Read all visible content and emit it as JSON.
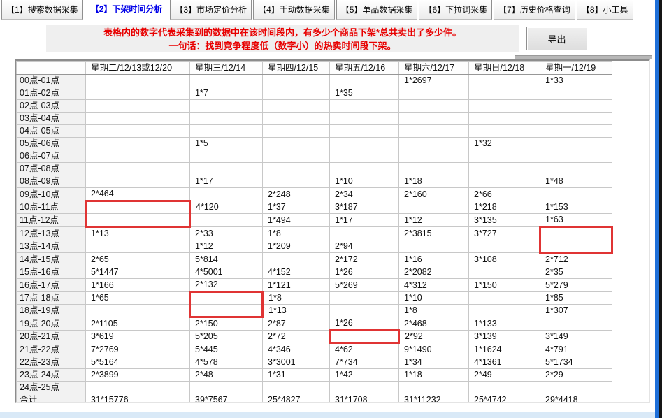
{
  "tabs": {
    "active_index": 1,
    "items": [
      "【1】搜索数据采集",
      "【2】下架时间分析",
      "【3】市场定价分析",
      "【4】手动数据采集",
      "【5】单品数据采集",
      "【6】下拉词采集",
      "【7】历史价格查询",
      "【8】小工具"
    ]
  },
  "banner": {
    "line1": "表格内的数字代表采集到的数据中在该时间段内，有多少个商品下架*总共卖出了多少件。",
    "line2": "一句话：找到竞争程度低（数字小）的热卖时间段下架。"
  },
  "toolbar": {
    "export_label": "导出"
  },
  "table": {
    "columns": [
      "",
      "星期二/12/13或12/20",
      "星期三/12/14",
      "星期四/12/15",
      "星期五/12/16",
      "星期六/12/17",
      "星期日/12/18",
      "星期一/12/19"
    ],
    "rows": [
      {
        "label": "00点-01点",
        "cells": [
          "",
          "",
          "",
          "",
          "1*2697",
          "",
          "1*33"
        ]
      },
      {
        "label": "01点-02点",
        "cells": [
          "",
          "1*7",
          "",
          "1*35",
          "",
          "",
          ""
        ]
      },
      {
        "label": "02点-03点",
        "cells": [
          "",
          "",
          "",
          "",
          "",
          "",
          ""
        ]
      },
      {
        "label": "03点-04点",
        "cells": [
          "",
          "",
          "",
          "",
          "",
          "",
          ""
        ]
      },
      {
        "label": "04点-05点",
        "cells": [
          "",
          "",
          "",
          "",
          "",
          "",
          ""
        ]
      },
      {
        "label": "05点-06点",
        "cells": [
          "",
          "1*5",
          "",
          "",
          "",
          "1*32",
          ""
        ]
      },
      {
        "label": "06点-07点",
        "cells": [
          "",
          "",
          "",
          "",
          "",
          "",
          ""
        ]
      },
      {
        "label": "07点-08点",
        "cells": [
          "",
          "",
          "",
          "",
          "",
          "",
          ""
        ]
      },
      {
        "label": "08点-09点",
        "cells": [
          "",
          "1*17",
          "",
          "1*10",
          "1*18",
          "",
          "1*48"
        ]
      },
      {
        "label": "09点-10点",
        "cells": [
          "2*464",
          "",
          "2*248",
          "2*34",
          "2*160",
          "2*66",
          ""
        ]
      },
      {
        "label": "10点-11点",
        "cells": [
          "",
          "4*120",
          "1*37",
          "3*187",
          "",
          "1*218",
          "1*153"
        ]
      },
      {
        "label": "11点-12点",
        "cells": [
          "",
          "",
          "1*494",
          "1*17",
          "1*12",
          "3*135",
          "1*63"
        ]
      },
      {
        "label": "12点-13点",
        "cells": [
          "1*13",
          "2*33",
          "1*8",
          "",
          "2*3815",
          "3*727",
          ""
        ]
      },
      {
        "label": "13点-14点",
        "cells": [
          "",
          "1*12",
          "1*209",
          "2*94",
          "",
          "",
          ""
        ]
      },
      {
        "label": "14点-15点",
        "cells": [
          "2*65",
          "5*814",
          "",
          "2*172",
          "1*16",
          "3*108",
          "2*712"
        ]
      },
      {
        "label": "15点-16点",
        "cells": [
          "5*1447",
          "4*5001",
          "4*152",
          "1*26",
          "2*2082",
          "",
          "2*35"
        ]
      },
      {
        "label": "16点-17点",
        "cells": [
          "1*166",
          "2*132",
          "1*121",
          "5*269",
          "4*312",
          "1*150",
          "5*279"
        ]
      },
      {
        "label": "17点-18点",
        "cells": [
          "1*65",
          "",
          "1*8",
          "",
          "1*10",
          "",
          "1*85"
        ]
      },
      {
        "label": "18点-19点",
        "cells": [
          "",
          "",
          "1*13",
          "",
          "1*8",
          "",
          "1*307"
        ]
      },
      {
        "label": "19点-20点",
        "cells": [
          "2*1105",
          "2*150",
          "2*87",
          "1*26",
          "2*468",
          "1*133",
          ""
        ]
      },
      {
        "label": "20点-21点",
        "cells": [
          "3*619",
          "5*205",
          "2*72",
          "",
          "2*92",
          "3*139",
          "3*149"
        ]
      },
      {
        "label": "21点-22点",
        "cells": [
          "7*2769",
          "5*445",
          "4*346",
          "4*62",
          "9*1490",
          "1*1624",
          "4*791"
        ]
      },
      {
        "label": "22点-23点",
        "cells": [
          "5*5164",
          "4*578",
          "3*3001",
          "7*734",
          "1*34",
          "4*1361",
          "5*1734"
        ]
      },
      {
        "label": "23点-24点",
        "cells": [
          "2*3899",
          "2*48",
          "1*31",
          "1*42",
          "1*18",
          "2*49",
          "2*29"
        ]
      },
      {
        "label": "24点-25点",
        "cells": [
          "",
          "",
          "",
          "",
          "",
          "",
          ""
        ]
      },
      {
        "label": "合计",
        "cells": [
          "31*15776",
          "39*7567",
          "25*4827",
          "31*1708",
          "31*11232",
          "25*4742",
          "29*4418"
        ]
      }
    ],
    "highlights": [
      {
        "row_index": 10,
        "col_index": 0,
        "row_span": 2
      },
      {
        "row_index": 12,
        "col_index": 6,
        "row_span": 2
      },
      {
        "row_index": 17,
        "col_index": 1,
        "row_span": 2
      },
      {
        "row_index": 20,
        "col_index": 3,
        "row_span": 1
      }
    ],
    "highlight_color": "#e03434"
  },
  "colors": {
    "active_tab_text": "#0000e8",
    "active_tab_top": "#ffa21c",
    "banner_text": "#e80000",
    "window_border_blue": "#1e6fd8"
  }
}
